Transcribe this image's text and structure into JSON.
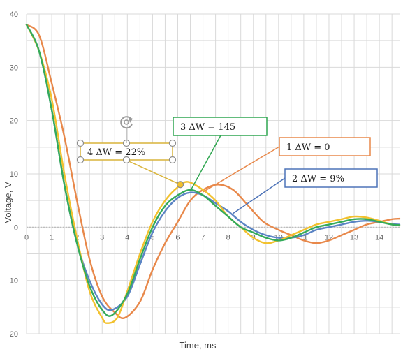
{
  "chart_data": {
    "type": "line",
    "xlabel": "Time, ms",
    "ylabel": "Voltage, V",
    "xlim": [
      0,
      14.8
    ],
    "ylim": [
      -20,
      40
    ],
    "x_ticks": [
      0,
      1,
      2,
      3,
      4,
      5,
      6,
      7,
      8,
      9,
      10,
      11,
      12,
      13,
      14
    ],
    "y_ticks": [
      {
        "value": 40,
        "label": "40"
      },
      {
        "value": 30,
        "label": "30"
      },
      {
        "value": 20,
        "label": "20"
      },
      {
        "value": 10,
        "label": "10"
      },
      {
        "value": 0,
        "label": "0"
      },
      {
        "value": -10,
        "label": "10"
      },
      {
        "value": -20,
        "label": "20"
      }
    ],
    "grid": true,
    "series": [
      {
        "name": "1 ΔW = 0",
        "color": "#e8884a",
        "points": [
          [
            0,
            38
          ],
          [
            0.5,
            36
          ],
          [
            1,
            27
          ],
          [
            1.5,
            17
          ],
          [
            2,
            5
          ],
          [
            2.5,
            -6
          ],
          [
            3,
            -13
          ],
          [
            3.5,
            -16
          ],
          [
            3.9,
            -17
          ],
          [
            4.5,
            -14
          ],
          [
            5,
            -8
          ],
          [
            5.5,
            -3
          ],
          [
            6,
            1
          ],
          [
            6.5,
            5
          ],
          [
            7,
            7
          ],
          [
            7.6,
            8
          ],
          [
            8.2,
            7
          ],
          [
            8.8,
            4
          ],
          [
            9.4,
            1
          ],
          [
            10,
            -0.5
          ],
          [
            10.5,
            -1.5
          ],
          [
            11,
            -2.5
          ],
          [
            11.5,
            -3
          ],
          [
            12,
            -2.5
          ],
          [
            12.5,
            -1.5
          ],
          [
            13,
            -0.5
          ],
          [
            13.5,
            0.5
          ],
          [
            14,
            1
          ],
          [
            14.5,
            1.5
          ],
          [
            14.8,
            1.6
          ]
        ]
      },
      {
        "name": "2 ΔW = 9%",
        "color": "#5b84c4",
        "points": [
          [
            0,
            38
          ],
          [
            0.5,
            33
          ],
          [
            1,
            22
          ],
          [
            1.5,
            8
          ],
          [
            2,
            -3
          ],
          [
            2.5,
            -10
          ],
          [
            3,
            -14.5
          ],
          [
            3.4,
            -15.5
          ],
          [
            4,
            -13
          ],
          [
            4.5,
            -7
          ],
          [
            5,
            -1
          ],
          [
            5.5,
            3
          ],
          [
            6,
            5.5
          ],
          [
            6.5,
            6.5
          ],
          [
            7,
            6
          ],
          [
            7.5,
            4.5
          ],
          [
            8,
            3
          ],
          [
            8.5,
            1
          ],
          [
            9,
            -0.5
          ],
          [
            9.5,
            -1.5
          ],
          [
            10,
            -2
          ],
          [
            10.5,
            -2
          ],
          [
            11,
            -1.5
          ],
          [
            11.5,
            -0.5
          ],
          [
            12,
            0
          ],
          [
            12.5,
            0.5
          ],
          [
            13,
            1
          ],
          [
            13.5,
            1.2
          ],
          [
            14,
            1
          ],
          [
            14.5,
            0.6
          ],
          [
            14.8,
            0.5
          ]
        ]
      },
      {
        "name": "3 ΔW = 145",
        "color": "#34ab5a",
        "points": [
          [
            0,
            38
          ],
          [
            0.5,
            33
          ],
          [
            1,
            22
          ],
          [
            1.5,
            8
          ],
          [
            2,
            -3
          ],
          [
            2.5,
            -11
          ],
          [
            3,
            -15.5
          ],
          [
            3.4,
            -16.5
          ],
          [
            4,
            -12.5
          ],
          [
            4.5,
            -6
          ],
          [
            5,
            0
          ],
          [
            5.5,
            4
          ],
          [
            6,
            6
          ],
          [
            6.5,
            7
          ],
          [
            7,
            6
          ],
          [
            7.5,
            4
          ],
          [
            8,
            2
          ],
          [
            8.5,
            0
          ],
          [
            9,
            -1
          ],
          [
            9.5,
            -2
          ],
          [
            10,
            -2.5
          ],
          [
            10.5,
            -2
          ],
          [
            11,
            -1
          ],
          [
            11.5,
            0
          ],
          [
            12,
            0.5
          ],
          [
            12.5,
            1
          ],
          [
            13,
            1.5
          ],
          [
            13.5,
            1.5
          ],
          [
            14,
            1
          ],
          [
            14.5,
            0.5
          ],
          [
            14.8,
            0.4
          ]
        ]
      },
      {
        "name": "4 ΔW = 22%",
        "color": "#f2c12e",
        "points": [
          [
            0,
            38
          ],
          [
            0.5,
            33
          ],
          [
            1,
            24
          ],
          [
            1.5,
            10
          ],
          [
            2,
            -2
          ],
          [
            2.5,
            -12
          ],
          [
            3,
            -17
          ],
          [
            3.2,
            -18
          ],
          [
            3.6,
            -17
          ],
          [
            4,
            -12
          ],
          [
            4.5,
            -5
          ],
          [
            5,
            1
          ],
          [
            5.5,
            5
          ],
          [
            6,
            7.5
          ],
          [
            6.4,
            8.5
          ],
          [
            7,
            7
          ],
          [
            7.5,
            5
          ],
          [
            8,
            2
          ],
          [
            8.5,
            0
          ],
          [
            9,
            -2
          ],
          [
            9.5,
            -3
          ],
          [
            10,
            -2.5
          ],
          [
            10.5,
            -1.5
          ],
          [
            11,
            -0.5
          ],
          [
            11.5,
            0.5
          ],
          [
            12,
            1
          ],
          [
            12.5,
            1.5
          ],
          [
            13,
            2
          ],
          [
            13.5,
            1.8
          ],
          [
            14,
            1.2
          ],
          [
            14.5,
            0.5
          ],
          [
            14.8,
            0.3
          ]
        ]
      }
    ],
    "callouts": [
      {
        "label": "1 ΔW = 0",
        "series": 0,
        "border": "#e8884a"
      },
      {
        "label": "2 ΔW = 9%",
        "series": 1,
        "border": "#4d73b8"
      },
      {
        "label": "3 ΔW = 145",
        "series": 2,
        "border": "#2fa650"
      },
      {
        "label": "4 ΔW = 22%",
        "series": 3,
        "border": "#d9b43a"
      }
    ]
  }
}
